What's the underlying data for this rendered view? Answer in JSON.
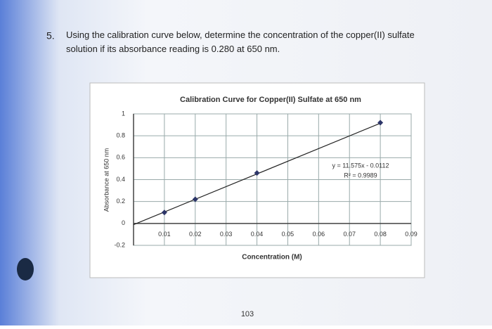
{
  "question": {
    "number": "5.",
    "text": "Using the calibration curve below, determine the concentration of the copper(II) sulfate solution if its absorbance reading is 0.280 at 650 nm."
  },
  "page_number": "103",
  "chart_data": {
    "type": "scatter",
    "title": "Calibration Curve for Copper(II) Sulfate at 650 nm",
    "x_label": "Concentration (M)",
    "y_label": "Absorbance at 650 nm",
    "x": [
      0.01,
      0.02,
      0.04,
      0.08
    ],
    "series": [
      {
        "name": "Absorbance",
        "color": "#2c3568",
        "values": [
          0.1,
          0.22,
          0.46,
          0.92
        ]
      }
    ],
    "trendline": {
      "slope": 11.575,
      "intercept": -0.0112,
      "equation": "y = 11.575x - 0.0112",
      "r_squared": 0.9989,
      "r_squared_label": "R² = 0.9989"
    },
    "xlim": [
      0,
      0.09
    ],
    "xticks": [
      0.01,
      0.02,
      0.03,
      0.04,
      0.05,
      0.06,
      0.07,
      0.08,
      0.09
    ],
    "ylim": [
      -0.2,
      1
    ],
    "yticks": [
      -0.2,
      0,
      0.2,
      0.4,
      0.6,
      0.8,
      1
    ],
    "grid": true
  }
}
